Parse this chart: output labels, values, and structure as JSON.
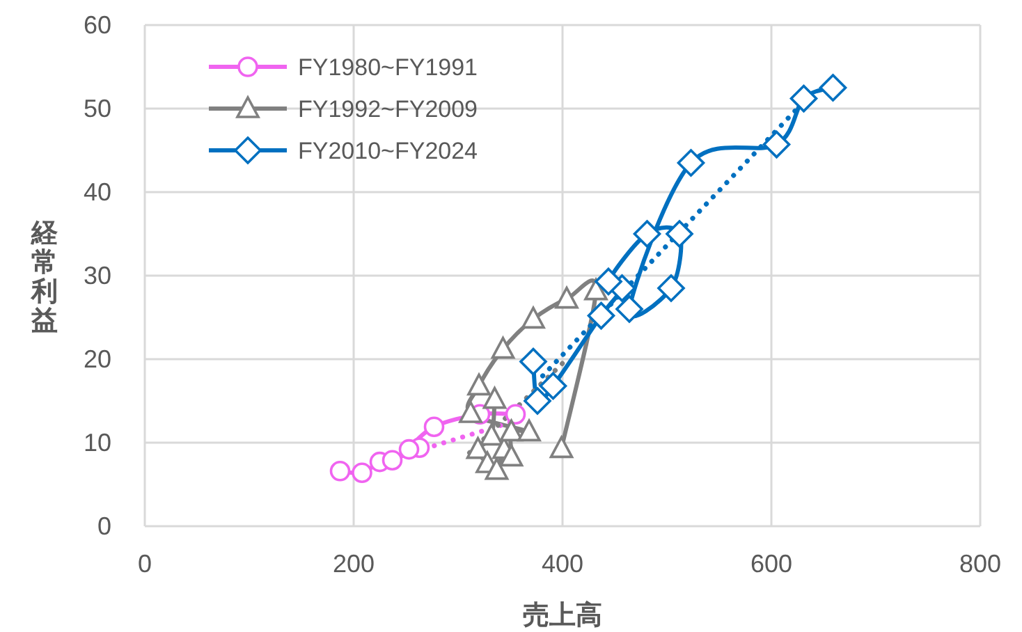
{
  "chart_data": {
    "type": "line",
    "xlabel": "売上高",
    "ylabel": "経常利益",
    "xlim": [
      0,
      800
    ],
    "ylim": [
      0,
      60
    ],
    "xticks": [
      0,
      200,
      400,
      600,
      800
    ],
    "yticks": [
      0,
      10,
      20,
      30,
      40,
      50,
      60
    ],
    "grid": true,
    "legend": "top left",
    "series": [
      {
        "name": "FY1980~FY1991",
        "color": "#f064f0",
        "marker": "circle",
        "line_style": "solid",
        "x": [
          187,
          208,
          225,
          237,
          263,
          253,
          277,
          321,
          355
        ],
        "values": [
          6.6,
          6.4,
          7.7,
          7.9,
          9.4,
          9.2,
          11.9,
          13.4,
          13.4
        ]
      },
      {
        "name": "FY1992~FY2009",
        "color": "#808080",
        "marker": "triangle",
        "line_style": "solid",
        "x": [
          335,
          332,
          319,
          328,
          337,
          344,
          351,
          351,
          368,
          312,
          320,
          343,
          372,
          404,
          432,
          399
        ],
        "values": [
          15.2,
          10.8,
          9.2,
          7.5,
          6.7,
          9.2,
          8.3,
          11.3,
          11.3,
          13.5,
          16.8,
          21.2,
          24.8,
          27.2,
          28.2,
          9.3
        ]
      },
      {
        "name": "FY2010~FY2024",
        "color": "#0070c0",
        "marker": "diamond",
        "line_style": "solid",
        "x": [
          372,
          376,
          391,
          437,
          457,
          444,
          481,
          512,
          504,
          464,
          523,
          605,
          631,
          659
        ],
        "values": [
          19.7,
          15.0,
          16.8,
          25.2,
          28.5,
          29.3,
          35.0,
          35.0,
          28.5,
          26.0,
          43.5,
          45.7,
          51.2,
          52.5
        ]
      },
      {
        "color": "#f064f0",
        "marker": "none",
        "line_style": "dotted",
        "x": [
          250,
          360
        ],
        "values": [
          8.6,
          12.8
        ]
      },
      {
        "color": "#808080",
        "marker": "none",
        "line_style": "dotted",
        "x": [
          311,
          400
        ],
        "values": [
          8.8,
          19.5
        ]
      },
      {
        "color": "#0070c0",
        "marker": "none",
        "line_style": "dotted",
        "x": [
          381,
          640
        ],
        "values": [
          18.0,
          52.0
        ]
      }
    ]
  }
}
